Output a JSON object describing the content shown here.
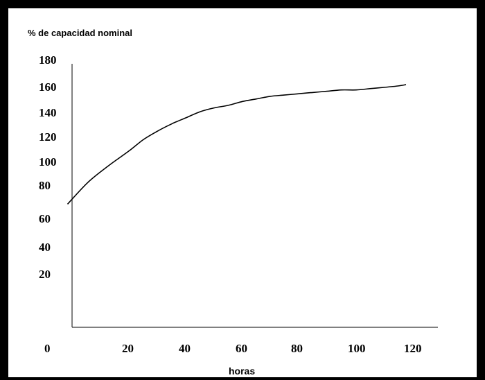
{
  "chart_data": {
    "type": "line",
    "title": "",
    "ylabel": "% de capacidad nominal",
    "xlabel": "horas",
    "xlim": [
      0,
      120
    ],
    "ylim": [
      0,
      180
    ],
    "x_ticks": [
      "0",
      "20",
      "40",
      "60",
      "80",
      "100",
      "120"
    ],
    "y_ticks": [
      "180",
      "160",
      "140",
      "120",
      "100",
      "80",
      "60",
      "40",
      "20"
    ],
    "grid": false,
    "legend": "none",
    "series": [
      {
        "x": [
          5,
          10,
          15,
          20,
          25,
          30,
          35,
          40,
          45,
          50,
          55,
          60,
          65,
          70,
          75,
          80,
          85,
          90,
          95,
          100,
          105,
          110,
          115,
          118
        ],
        "y": [
          69,
          83,
          97,
          109,
          118,
          125,
          131,
          136,
          141,
          144,
          146,
          149,
          151,
          153,
          154,
          155,
          156,
          157,
          158,
          158,
          159,
          160,
          161,
          162
        ]
      }
    ]
  }
}
